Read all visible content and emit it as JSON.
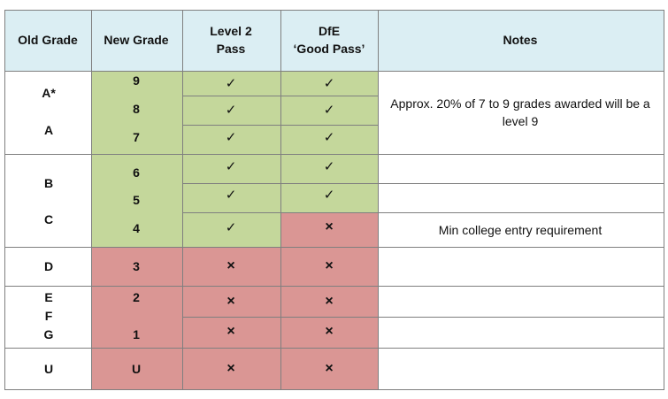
{
  "header": {
    "old_grade": "Old Grade",
    "new_grade": "New Grade",
    "level2_pass": [
      "Level 2",
      "Pass"
    ],
    "dfe_good_pass": [
      "DfE",
      "‘Good Pass’"
    ],
    "notes": "Notes"
  },
  "groups": [
    {
      "old_grades": [
        "A*",
        "A"
      ],
      "new_grades": [
        "9",
        "8",
        "7"
      ],
      "level2_pass": [
        "✓",
        "✓",
        "✓"
      ],
      "dfe_good_pass": [
        "✓",
        "✓",
        "✓"
      ],
      "notes": [
        "Approx. 20% of 7 to 9 grades awarded will be a level 9"
      ]
    },
    {
      "old_grades": [
        "B",
        "C"
      ],
      "new_grades": [
        "6",
        "5",
        "4"
      ],
      "level2_pass": [
        "✓",
        "✓",
        "✓"
      ],
      "dfe_good_pass": [
        "✓",
        "✓",
        "×"
      ],
      "notes": [
        "Min college entry requirement"
      ]
    },
    {
      "old_grades": [
        "D"
      ],
      "new_grades": [
        "3"
      ],
      "level2_pass": [
        "×"
      ],
      "dfe_good_pass": [
        "×"
      ]
    },
    {
      "old_grades": [
        "E",
        "F",
        "G"
      ],
      "new_grades": [
        "2",
        "1"
      ],
      "level2_pass": [
        "×",
        "×"
      ],
      "dfe_good_pass": [
        "×",
        "×"
      ]
    },
    {
      "old_grades": [
        "U"
      ],
      "new_grades": [
        "U"
      ],
      "level2_pass": [
        "×"
      ],
      "dfe_good_pass": [
        "×"
      ]
    }
  ]
}
